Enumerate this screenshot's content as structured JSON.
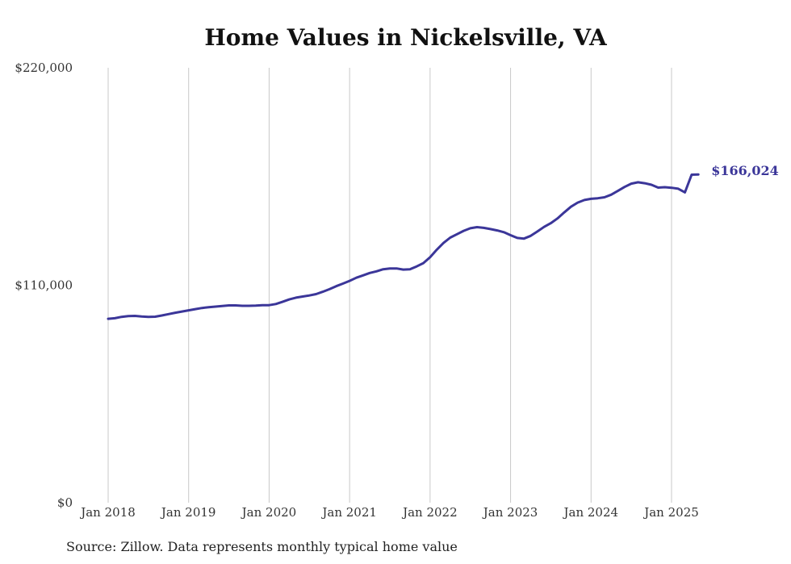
{
  "chart_data": {
    "type": "line",
    "title": "Home Values in Nickelsville, VA",
    "xlabel": "",
    "ylabel": "",
    "ylim": [
      0,
      220000
    ],
    "y_ticks": [
      0,
      110000,
      220000
    ],
    "y_tick_labels": [
      "$0",
      "$110,000",
      "$220,000"
    ],
    "x_ticks": [
      "2018-01",
      "2019-01",
      "2020-01",
      "2021-01",
      "2022-01",
      "2023-01",
      "2024-01",
      "2025-01"
    ],
    "x_tick_labels": [
      "Jan 2018",
      "Jan 2019",
      "Jan 2020",
      "Jan 2021",
      "Jan 2022",
      "Jan 2023",
      "Jan 2024",
      "Jan 2025"
    ],
    "grid": "vertical",
    "series": [
      {
        "color": "#3b3699",
        "end_label": "$166,024",
        "points": [
          [
            "2018-01",
            93000
          ],
          [
            "2018-02",
            93300
          ],
          [
            "2018-03",
            94000
          ],
          [
            "2018-04",
            94400
          ],
          [
            "2018-05",
            94500
          ],
          [
            "2018-06",
            94200
          ],
          [
            "2018-07",
            94000
          ],
          [
            "2018-08",
            94100
          ],
          [
            "2018-09",
            94700
          ],
          [
            "2018-10",
            95400
          ],
          [
            "2018-11",
            96100
          ],
          [
            "2018-12",
            96700
          ],
          [
            "2019-01",
            97300
          ],
          [
            "2019-02",
            97900
          ],
          [
            "2019-03",
            98500
          ],
          [
            "2019-04",
            98900
          ],
          [
            "2019-05",
            99200
          ],
          [
            "2019-06",
            99500
          ],
          [
            "2019-07",
            99800
          ],
          [
            "2019-08",
            99800
          ],
          [
            "2019-09",
            99600
          ],
          [
            "2019-10",
            99600
          ],
          [
            "2019-11",
            99700
          ],
          [
            "2019-12",
            99900
          ],
          [
            "2020-01",
            99900
          ],
          [
            "2020-02",
            100500
          ],
          [
            "2020-03",
            101600
          ],
          [
            "2020-04",
            102800
          ],
          [
            "2020-05",
            103700
          ],
          [
            "2020-06",
            104300
          ],
          [
            "2020-07",
            104800
          ],
          [
            "2020-08",
            105500
          ],
          [
            "2020-09",
            106700
          ],
          [
            "2020-10",
            108000
          ],
          [
            "2020-11",
            109500
          ],
          [
            "2020-12",
            110800
          ],
          [
            "2021-01",
            112200
          ],
          [
            "2021-02",
            113800
          ],
          [
            "2021-03",
            115000
          ],
          [
            "2021-04",
            116200
          ],
          [
            "2021-05",
            117000
          ],
          [
            "2021-06",
            118100
          ],
          [
            "2021-07",
            118500
          ],
          [
            "2021-08",
            118500
          ],
          [
            "2021-09",
            117900
          ],
          [
            "2021-10",
            118100
          ],
          [
            "2021-11",
            119500
          ],
          [
            "2021-12",
            121200
          ],
          [
            "2022-01",
            124200
          ],
          [
            "2022-02",
            128000
          ],
          [
            "2022-03",
            131400
          ],
          [
            "2022-04",
            134100
          ],
          [
            "2022-05",
            135800
          ],
          [
            "2022-06",
            137500
          ],
          [
            "2022-07",
            138800
          ],
          [
            "2022-08",
            139400
          ],
          [
            "2022-09",
            139000
          ],
          [
            "2022-10",
            138400
          ],
          [
            "2022-11",
            137700
          ],
          [
            "2022-12",
            136800
          ],
          [
            "2023-01",
            135300
          ],
          [
            "2023-02",
            133900
          ],
          [
            "2023-03",
            133600
          ],
          [
            "2023-04",
            135000
          ],
          [
            "2023-05",
            137200
          ],
          [
            "2023-06",
            139500
          ],
          [
            "2023-07",
            141400
          ],
          [
            "2023-08",
            143800
          ],
          [
            "2023-09",
            146800
          ],
          [
            "2023-10",
            149700
          ],
          [
            "2023-11",
            151800
          ],
          [
            "2023-12",
            153100
          ],
          [
            "2024-01",
            153700
          ],
          [
            "2024-02",
            154000
          ],
          [
            "2024-03",
            154500
          ],
          [
            "2024-04",
            155800
          ],
          [
            "2024-05",
            157700
          ],
          [
            "2024-06",
            159700
          ],
          [
            "2024-07",
            161400
          ],
          [
            "2024-08",
            162100
          ],
          [
            "2024-09",
            161600
          ],
          [
            "2024-10",
            160800
          ],
          [
            "2024-11",
            159400
          ],
          [
            "2024-12",
            159600
          ],
          [
            "2025-01",
            159300
          ],
          [
            "2025-02",
            158800
          ],
          [
            "2025-03",
            157000
          ],
          [
            "2025-04",
            165900
          ],
          [
            "2025-05",
            166024
          ]
        ]
      }
    ]
  },
  "source_note": "Source: Zillow. Data represents monthly typical home value"
}
